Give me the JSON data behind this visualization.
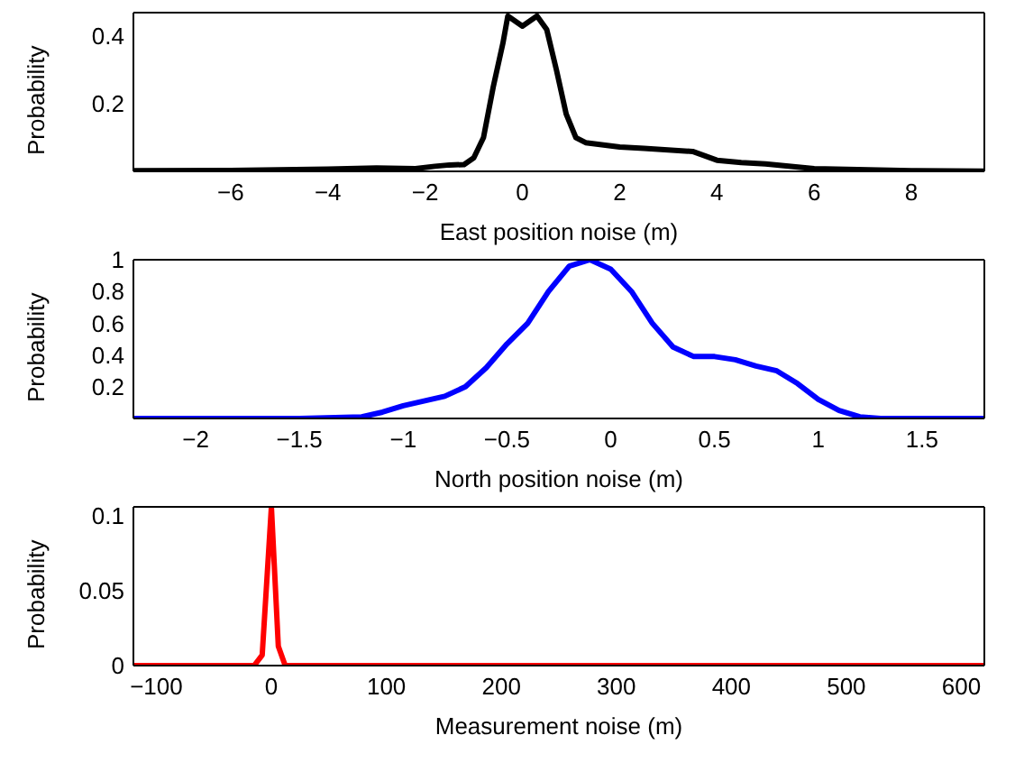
{
  "chart_data": [
    {
      "type": "line",
      "xlabel": "East position noise (m)",
      "ylabel": "Probability",
      "xlim": [
        -8,
        9.5
      ],
      "ylim": [
        0,
        0.47
      ],
      "xticks": [
        -6,
        -4,
        -2,
        0,
        2,
        4,
        6,
        8
      ],
      "yticks": [
        0.2,
        0.4
      ],
      "grid": false,
      "legend": false,
      "series": [
        {
          "color": "#000000",
          "x": [
            -8,
            -6,
            -4,
            -3,
            -2.2,
            -1.8,
            -1.5,
            -1.2,
            -1,
            -0.8,
            -0.6,
            -0.4,
            -0.3,
            -0.1,
            0,
            0.3,
            0.5,
            0.7,
            0.9,
            1.1,
            1.3,
            2,
            2.5,
            3.5,
            4,
            4.5,
            5,
            6,
            8,
            9.5
          ],
          "values": [
            0.002,
            0.003,
            0.007,
            0.01,
            0.008,
            0.015,
            0.019,
            0.02,
            0.04,
            0.1,
            0.25,
            0.38,
            0.46,
            0.44,
            0.43,
            0.46,
            0.42,
            0.3,
            0.17,
            0.1,
            0.085,
            0.072,
            0.068,
            0.059,
            0.033,
            0.026,
            0.022,
            0.008,
            0.002,
            0.001
          ]
        }
      ]
    },
    {
      "type": "line",
      "xlabel": "North position noise (m)",
      "ylabel": "Probability",
      "xlim": [
        -2.3,
        1.8
      ],
      "ylim": [
        0,
        1
      ],
      "xticks": [
        -2,
        -1.5,
        -1,
        -0.5,
        0,
        0.5,
        1,
        1.5
      ],
      "yticks": [
        0.2,
        0.4,
        0.6,
        0.8,
        1
      ],
      "grid": false,
      "legend": false,
      "series": [
        {
          "color": "#0000ff",
          "x": [
            -2.3,
            -1.5,
            -1.2,
            -1.1,
            -1,
            -0.8,
            -0.7,
            -0.6,
            -0.5,
            -0.4,
            -0.3,
            -0.2,
            -0.1,
            0,
            0.1,
            0.2,
            0.3,
            0.4,
            0.5,
            0.6,
            0.7,
            0.8,
            0.9,
            1,
            1.1,
            1.2,
            1.3,
            1.8
          ],
          "values": [
            0,
            0,
            0.01,
            0.04,
            0.08,
            0.14,
            0.2,
            0.32,
            0.47,
            0.6,
            0.8,
            0.96,
            1,
            0.94,
            0.8,
            0.6,
            0.45,
            0.39,
            0.39,
            0.37,
            0.33,
            0.3,
            0.22,
            0.12,
            0.05,
            0.01,
            0,
            0
          ]
        }
      ]
    },
    {
      "type": "line",
      "xlabel": "Measurement noise (m)",
      "ylabel": "Probability",
      "xlim": [
        -120,
        620
      ],
      "ylim": [
        0,
        0.106
      ],
      "xticks": [
        -100,
        0,
        100,
        200,
        300,
        400,
        500,
        600
      ],
      "yticks": [
        0,
        0.05,
        0.1
      ],
      "grid": false,
      "legend": false,
      "series": [
        {
          "color": "#ff0000",
          "x": [
            -120,
            -15,
            -8,
            0,
            6,
            12,
            620
          ],
          "values": [
            0,
            0,
            0.007,
            0.106,
            0.013,
            0,
            0
          ]
        }
      ]
    }
  ]
}
